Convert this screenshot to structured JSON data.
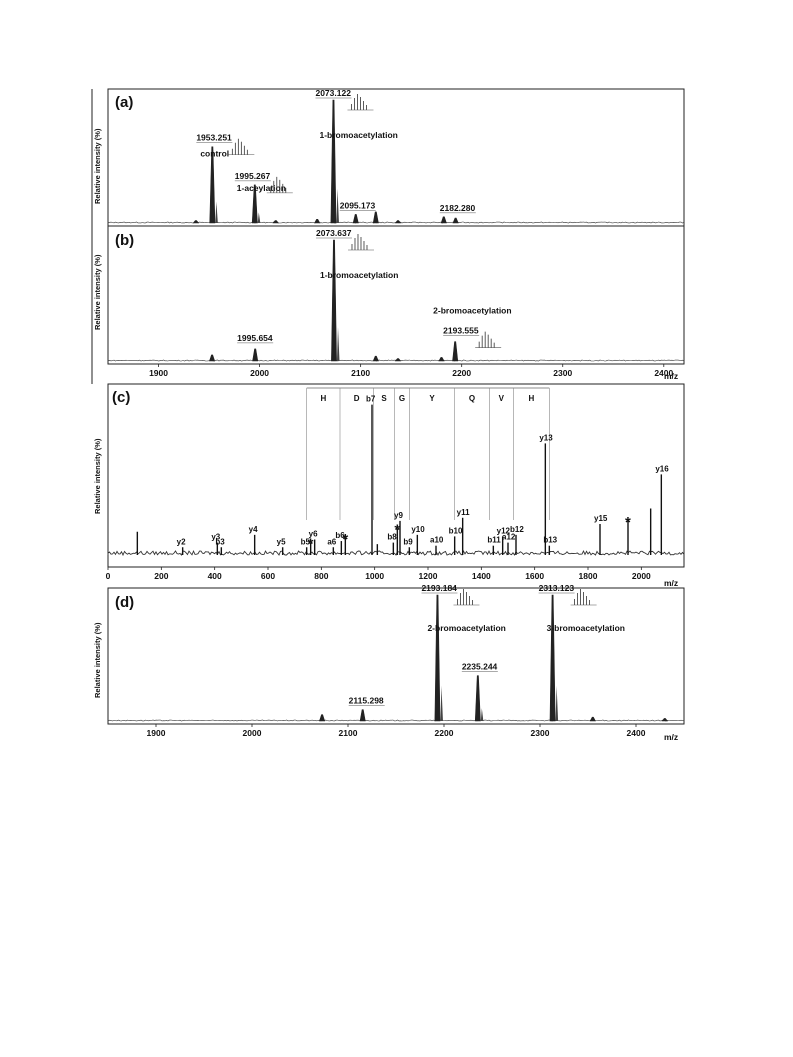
{
  "chart_data": [
    {
      "panel": "(a)",
      "type": "line",
      "ylabel": "Relative intensity (%)",
      "xlabel": "",
      "xlim": [
        1850,
        2420
      ],
      "peaks": [
        {
          "mz": 1953.251,
          "rel": 0.62,
          "label": "1953.251",
          "note": "control"
        },
        {
          "mz": 1995.267,
          "rel": 0.31,
          "label": "1995.267",
          "note": "1-aceylation"
        },
        {
          "mz": 2073.122,
          "rel": 1.0,
          "label": "2073.122",
          "note": "1-bromoacetylation"
        },
        {
          "mz": 2095.173,
          "rel": 0.07,
          "label": "2095.173"
        },
        {
          "mz": 2182.28,
          "rel": 0.05,
          "label": "2182.280"
        },
        {
          "mz": 2115,
          "rel": 0.09
        },
        {
          "mz": 2194,
          "rel": 0.04
        },
        {
          "mz": 1937,
          "rel": 0.02
        },
        {
          "mz": 2016,
          "rel": 0.02
        },
        {
          "mz": 2057,
          "rel": 0.03
        },
        {
          "mz": 2137,
          "rel": 0.02
        }
      ]
    },
    {
      "panel": "(b)",
      "type": "line",
      "ylabel": "Relative intensity (%)",
      "xlabel": "m/z",
      "xlim": [
        1850,
        2420
      ],
      "xticks": [
        "1900",
        "2000",
        "2100",
        "2200",
        "2300",
        "2400"
      ],
      "peaks": [
        {
          "mz": 1953,
          "rel": 0.05
        },
        {
          "mz": 1995.654,
          "rel": 0.1,
          "label": "1995.654"
        },
        {
          "mz": 2073.637,
          "rel": 1.0,
          "label": "2073.637",
          "note": "1-bromoacetylation"
        },
        {
          "mz": 2115,
          "rel": 0.04
        },
        {
          "mz": 2137,
          "rel": 0.02
        },
        {
          "mz": 2180,
          "rel": 0.03
        },
        {
          "mz": 2193.555,
          "rel": 0.16,
          "label": "2193.555",
          "note": "2-bromoacetylation"
        }
      ]
    },
    {
      "panel": "(c)",
      "type": "line",
      "ylabel": "Relative intensity (%)",
      "xlabel": "m/z",
      "xlim": [
        0,
        2160
      ],
      "xticks": [
        "0",
        "200",
        "400",
        "600",
        "800",
        "1000",
        "1200",
        "1400",
        "1600",
        "1800",
        "2000"
      ],
      "residues": [
        "H",
        "D",
        "S",
        "G",
        "Y",
        "Q",
        "V",
        "H"
      ],
      "peaks": [
        {
          "mz": 110,
          "rel": 0.15
        },
        {
          "mz": 280,
          "rel": 0.05,
          "label": "y2"
        },
        {
          "mz": 410,
          "rel": 0.08,
          "label": "y3"
        },
        {
          "mz": 425,
          "rel": 0.05,
          "label": "b3"
        },
        {
          "mz": 550,
          "rel": 0.13,
          "label": "y4"
        },
        {
          "mz": 655,
          "rel": 0.05,
          "label": "y5"
        },
        {
          "mz": 745,
          "rel": 0.05,
          "label": "b5"
        },
        {
          "mz": 760,
          "rel": 0.08,
          "label": "*"
        },
        {
          "mz": 775,
          "rel": 0.1,
          "label": "y6"
        },
        {
          "mz": 845,
          "rel": 0.05,
          "label": "a6"
        },
        {
          "mz": 875,
          "rel": 0.09,
          "label": "b6"
        },
        {
          "mz": 890,
          "rel": 0.11,
          "label": "*"
        },
        {
          "mz": 990,
          "rel": 0.97,
          "label": "b7"
        },
        {
          "mz": 1010,
          "rel": 0.07
        },
        {
          "mz": 1070,
          "rel": 0.08,
          "label": "b8"
        },
        {
          "mz": 1085,
          "rel": 0.17,
          "label": "*"
        },
        {
          "mz": 1095,
          "rel": 0.22,
          "label": "y9"
        },
        {
          "mz": 1130,
          "rel": 0.05,
          "label": "b9"
        },
        {
          "mz": 1160,
          "rel": 0.13,
          "label": "y10"
        },
        {
          "mz": 1230,
          "rel": 0.06,
          "label": "a10"
        },
        {
          "mz": 1300,
          "rel": 0.12,
          "label": "b10"
        },
        {
          "mz": 1330,
          "rel": 0.24,
          "label": "y11"
        },
        {
          "mz": 1445,
          "rel": 0.06,
          "label": "b11"
        },
        {
          "mz": 1480,
          "rel": 0.12,
          "label": "y12"
        },
        {
          "mz": 1500,
          "rel": 0.08,
          "label": "a12"
        },
        {
          "mz": 1530,
          "rel": 0.13,
          "label": "b12"
        },
        {
          "mz": 1640,
          "rel": 0.72,
          "label": "y13"
        },
        {
          "mz": 1655,
          "rel": 0.06,
          "label": "b13"
        },
        {
          "mz": 1845,
          "rel": 0.2,
          "label": "y15"
        },
        {
          "mz": 1950,
          "rel": 0.22,
          "label": "*"
        },
        {
          "mz": 2035,
          "rel": 0.3
        },
        {
          "mz": 2075,
          "rel": 0.52,
          "label": "y16"
        }
      ]
    },
    {
      "panel": "(d)",
      "type": "line",
      "ylabel": "Relative intensity (%)",
      "xlabel": "m/z",
      "xlim": [
        1850,
        2450
      ],
      "xticks": [
        "1900",
        "2000",
        "2100",
        "2200",
        "2300",
        "2400"
      ],
      "peaks": [
        {
          "mz": 2073,
          "rel": 0.05
        },
        {
          "mz": 2115.298,
          "rel": 0.09,
          "label": "2115.298"
        },
        {
          "mz": 2193.184,
          "rel": 1.0,
          "label": "2193.184",
          "note": "2-bromoacetylation"
        },
        {
          "mz": 2235.244,
          "rel": 0.36,
          "label": "2235.244"
        },
        {
          "mz": 2313.123,
          "rel": 1.0,
          "label": "2313.123",
          "note": "3-bromoacetylation"
        },
        {
          "mz": 2355,
          "rel": 0.03
        },
        {
          "mz": 2430,
          "rel": 0.02
        }
      ]
    }
  ]
}
